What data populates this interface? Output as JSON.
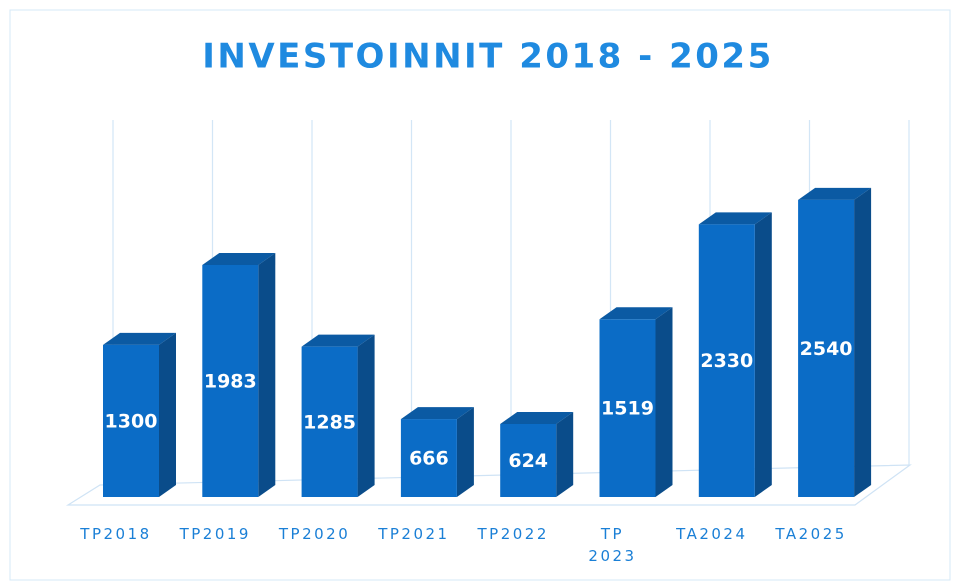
{
  "chart_data": {
    "type": "bar3d",
    "title": "INVESTOINNIT 2018 - 2025",
    "categories": [
      "TP2018",
      "TP2019",
      "TP2020",
      "TP2021",
      "TP2022",
      "TP\n2023",
      "TA2024",
      "TA2025"
    ],
    "values": [
      1300,
      1983,
      1285,
      666,
      624,
      1519,
      2330,
      2540
    ],
    "color": "#0b6cc6",
    "grid": true
  }
}
